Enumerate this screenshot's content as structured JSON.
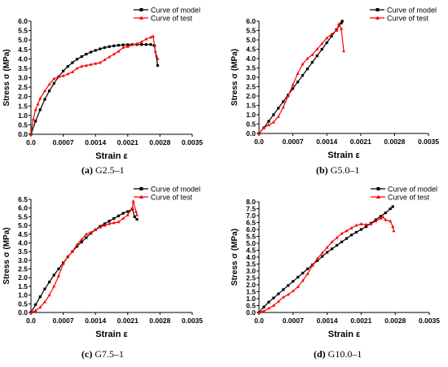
{
  "chart_data": [
    {
      "type": "line",
      "caption_letter": "(a)",
      "caption_text": "G2.5–1",
      "xlabel": "Strain ε",
      "ylabel": "Stress σ (MPa)",
      "xlim": [
        0,
        0.0035
      ],
      "ylim": [
        0,
        6.0
      ],
      "xticks": [
        "0.0",
        "0.0007",
        "0.0014",
        "0.0021",
        "0.0028",
        "0.0035"
      ],
      "xtick_values": [
        0,
        0.0007,
        0.0014,
        0.0021,
        0.0028,
        0.0035
      ],
      "yticks": [
        "0.0",
        "0.5",
        "1.0",
        "1.5",
        "2.0",
        "2.5",
        "3.0",
        "3.5",
        "4.0",
        "4.5",
        "5.0",
        "5.5",
        "6.0"
      ],
      "ytick_values": [
        0,
        0.5,
        1.0,
        1.5,
        2.0,
        2.5,
        3.0,
        3.5,
        4.0,
        4.5,
        5.0,
        5.5,
        6.0
      ],
      "legend_position": "top-right",
      "series": [
        {
          "name": "Curve of model",
          "color": "#000000",
          "marker": "square",
          "points": [
            [
              0,
              0
            ],
            [
              0.0001,
              0.7
            ],
            [
              0.0002,
              1.3
            ],
            [
              0.0003,
              1.85
            ],
            [
              0.0004,
              2.3
            ],
            [
              0.0005,
              2.7
            ],
            [
              0.0006,
              3.05
            ],
            [
              0.0007,
              3.35
            ],
            [
              0.0008,
              3.6
            ],
            [
              0.0009,
              3.8
            ],
            [
              0.001,
              3.98
            ],
            [
              0.0011,
              4.12
            ],
            [
              0.0012,
              4.25
            ],
            [
              0.0013,
              4.36
            ],
            [
              0.0014,
              4.45
            ],
            [
              0.0015,
              4.53
            ],
            [
              0.0016,
              4.6
            ],
            [
              0.0017,
              4.65
            ],
            [
              0.0018,
              4.69
            ],
            [
              0.0019,
              4.72
            ],
            [
              0.002,
              4.74
            ],
            [
              0.0021,
              4.75
            ],
            [
              0.0022,
              4.76
            ],
            [
              0.0023,
              4.76
            ],
            [
              0.0024,
              4.76
            ],
            [
              0.0025,
              4.76
            ],
            [
              0.0026,
              4.76
            ],
            [
              0.00268,
              4.7
            ],
            [
              0.00275,
              3.65
            ]
          ]
        },
        {
          "name": "Curve of test",
          "color": "#ff0000",
          "marker": "triangle",
          "points": [
            [
              0,
              0
            ],
            [
              5e-05,
              0.8
            ],
            [
              0.0001,
              1.3
            ],
            [
              0.00015,
              1.6
            ],
            [
              0.0002,
              1.9
            ],
            [
              0.0003,
              2.3
            ],
            [
              0.0004,
              2.65
            ],
            [
              0.0005,
              2.95
            ],
            [
              0.0006,
              3.05
            ],
            [
              0.0007,
              3.1
            ],
            [
              0.0008,
              3.2
            ],
            [
              0.0009,
              3.3
            ],
            [
              0.001,
              3.5
            ],
            [
              0.0011,
              3.6
            ],
            [
              0.0012,
              3.65
            ],
            [
              0.0013,
              3.7
            ],
            [
              0.0014,
              3.75
            ],
            [
              0.0015,
              3.8
            ],
            [
              0.0016,
              3.95
            ],
            [
              0.0017,
              4.1
            ],
            [
              0.0018,
              4.25
            ],
            [
              0.0019,
              4.4
            ],
            [
              0.002,
              4.6
            ],
            [
              0.0021,
              4.65
            ],
            [
              0.0022,
              4.75
            ],
            [
              0.0023,
              4.8
            ],
            [
              0.0024,
              4.9
            ],
            [
              0.0025,
              5.05
            ],
            [
              0.0026,
              5.15
            ],
            [
              0.00265,
              5.2
            ],
            [
              0.0027,
              4.4
            ],
            [
              0.00275,
              4.0
            ]
          ]
        }
      ]
    },
    {
      "type": "line",
      "caption_letter": "(b)",
      "caption_text": "G5.0–1",
      "xlabel": "Strain ε",
      "ylabel": "Stress σ (MPa)",
      "xlim": [
        0,
        0.0035
      ],
      "ylim": [
        0,
        6.0
      ],
      "xticks": [
        "0.0",
        "0.0007",
        "0.0014",
        "0.0021",
        "0.0028",
        "0.0035"
      ],
      "xtick_values": [
        0,
        0.0007,
        0.0014,
        0.0021,
        0.0028,
        0.0035
      ],
      "yticks": [
        "0.0",
        "0.5",
        "1.0",
        "1.5",
        "2.0",
        "2.5",
        "3.0",
        "3.5",
        "4.0",
        "4.5",
        "5.0",
        "5.5",
        "6.0"
      ],
      "ytick_values": [
        0,
        0.5,
        1.0,
        1.5,
        2.0,
        2.5,
        3.0,
        3.5,
        4.0,
        4.5,
        5.0,
        5.5,
        6.0
      ],
      "legend_position": "top-right",
      "series": [
        {
          "name": "Curve of model",
          "color": "#000000",
          "marker": "square",
          "points": [
            [
              0,
              0
            ],
            [
              0.0001,
              0.3
            ],
            [
              0.0002,
              0.65
            ],
            [
              0.0003,
              1.0
            ],
            [
              0.0004,
              1.35
            ],
            [
              0.0005,
              1.7
            ],
            [
              0.0006,
              2.05
            ],
            [
              0.0007,
              2.4
            ],
            [
              0.0008,
              2.75
            ],
            [
              0.0009,
              3.1
            ],
            [
              0.001,
              3.45
            ],
            [
              0.0011,
              3.8
            ],
            [
              0.0012,
              4.15
            ],
            [
              0.0013,
              4.5
            ],
            [
              0.0014,
              4.85
            ],
            [
              0.0015,
              5.2
            ],
            [
              0.0016,
              5.55
            ],
            [
              0.0017,
              5.9
            ],
            [
              0.00172,
              6.0
            ]
          ]
        },
        {
          "name": "Curve of test",
          "color": "#ff0000",
          "marker": "triangle",
          "points": [
            [
              0,
              0
            ],
            [
              0.0001,
              0.3
            ],
            [
              0.0002,
              0.45
            ],
            [
              0.0003,
              0.6
            ],
            [
              0.0004,
              0.9
            ],
            [
              0.0005,
              1.4
            ],
            [
              0.0006,
              2.0
            ],
            [
              0.0007,
              2.6
            ],
            [
              0.0008,
              3.2
            ],
            [
              0.0009,
              3.7
            ],
            [
              0.001,
              4.0
            ],
            [
              0.0011,
              4.2
            ],
            [
              0.0012,
              4.5
            ],
            [
              0.0013,
              4.8
            ],
            [
              0.0014,
              5.1
            ],
            [
              0.0015,
              5.3
            ],
            [
              0.0016,
              5.5
            ],
            [
              0.00165,
              5.85
            ],
            [
              0.0017,
              5.6
            ],
            [
              0.00175,
              4.4
            ]
          ]
        }
      ]
    },
    {
      "type": "line",
      "caption_letter": "(c)",
      "caption_text": "G7.5–1",
      "xlabel": "Strain ε",
      "ylabel": "Stress σ (MPa)",
      "xlim": [
        0,
        0.0035
      ],
      "ylim": [
        0,
        6.5
      ],
      "xticks": [
        "0.0",
        "0.0007",
        "0.0014",
        "0.0021",
        "0.0028",
        "0.0035"
      ],
      "xtick_values": [
        0,
        0.0007,
        0.0014,
        0.0021,
        0.0028,
        0.0035
      ],
      "yticks": [
        "0.0",
        "0.5",
        "1.0",
        "1.5",
        "2.0",
        "2.5",
        "3.0",
        "3.5",
        "4.0",
        "4.5",
        "5.0",
        "5.5",
        "6.0",
        "6.5"
      ],
      "ytick_values": [
        0,
        0.5,
        1.0,
        1.5,
        2.0,
        2.5,
        3.0,
        3.5,
        4.0,
        4.5,
        5.0,
        5.5,
        6.0,
        6.5
      ],
      "legend_position": "top-right",
      "series": [
        {
          "name": "Curve of model",
          "color": "#000000",
          "marker": "square",
          "points": [
            [
              0,
              0
            ],
            [
              0.0001,
              0.45
            ],
            [
              0.0002,
              0.9
            ],
            [
              0.0003,
              1.35
            ],
            [
              0.0004,
              1.75
            ],
            [
              0.0005,
              2.15
            ],
            [
              0.0006,
              2.5
            ],
            [
              0.0007,
              2.85
            ],
            [
              0.0008,
              3.2
            ],
            [
              0.0009,
              3.5
            ],
            [
              0.001,
              3.8
            ],
            [
              0.0011,
              4.05
            ],
            [
              0.0012,
              4.3
            ],
            [
              0.0013,
              4.55
            ],
            [
              0.0014,
              4.75
            ],
            [
              0.0015,
              4.95
            ],
            [
              0.0016,
              5.1
            ],
            [
              0.0017,
              5.25
            ],
            [
              0.0018,
              5.4
            ],
            [
              0.0019,
              5.55
            ],
            [
              0.002,
              5.7
            ],
            [
              0.0021,
              5.8
            ],
            [
              0.0022,
              5.95
            ],
            [
              0.00225,
              5.5
            ],
            [
              0.0023,
              5.35
            ]
          ]
        },
        {
          "name": "Curve of test",
          "color": "#ff0000",
          "marker": "triangle",
          "points": [
            [
              0,
              0
            ],
            [
              0.0001,
              0.1
            ],
            [
              0.0002,
              0.3
            ],
            [
              0.0003,
              0.6
            ],
            [
              0.0004,
              1.0
            ],
            [
              0.0005,
              1.5
            ],
            [
              0.0006,
              2.1
            ],
            [
              0.0007,
              2.8
            ],
            [
              0.0008,
              3.2
            ],
            [
              0.0009,
              3.5
            ],
            [
              0.001,
              3.9
            ],
            [
              0.0011,
              4.2
            ],
            [
              0.0012,
              4.5
            ],
            [
              0.0013,
              4.6
            ],
            [
              0.0014,
              4.75
            ],
            [
              0.0015,
              4.9
            ],
            [
              0.0016,
              5.0
            ],
            [
              0.0017,
              5.1
            ],
            [
              0.0018,
              5.15
            ],
            [
              0.0019,
              5.2
            ],
            [
              0.002,
              5.4
            ],
            [
              0.0021,
              5.6
            ],
            [
              0.0022,
              6.0
            ],
            [
              0.00222,
              6.4
            ],
            [
              0.00228,
              5.8
            ],
            [
              0.0023,
              5.6
            ]
          ]
        }
      ]
    },
    {
      "type": "line",
      "caption_letter": "(d)",
      "caption_text": "G10.0–1",
      "xlabel": "Strain ε",
      "ylabel": "Stress σ (MPa)",
      "xlim": [
        0,
        0.0035
      ],
      "ylim": [
        0,
        8.0
      ],
      "xticks": [
        "0.0",
        "0.0007",
        "0.0014",
        "0.0021",
        "0.0028",
        "0.0035"
      ],
      "xtick_values": [
        0,
        0.0007,
        0.0014,
        0.0021,
        0.0028,
        0.0035
      ],
      "yticks": [
        "0.0",
        "0.5",
        "1.0",
        "1.5",
        "2.0",
        "2.5",
        "3.0",
        "3.5",
        "4.0",
        "4.5",
        "5.0",
        "5.5",
        "6.0",
        "6.5",
        "7.0",
        "7.5",
        "8.0"
      ],
      "ytick_values": [
        0,
        0.5,
        1.0,
        1.5,
        2.0,
        2.5,
        3.0,
        3.5,
        4.0,
        4.5,
        5.0,
        5.5,
        6.0,
        6.5,
        7.0,
        7.5,
        8.0
      ],
      "legend_position": "top-right",
      "series": [
        {
          "name": "Curve of model",
          "color": "#000000",
          "marker": "square",
          "points": [
            [
              0,
              0
            ],
            [
              0.0001,
              0.4
            ],
            [
              0.0002,
              0.75
            ],
            [
              0.0003,
              1.05
            ],
            [
              0.0004,
              1.35
            ],
            [
              0.0005,
              1.65
            ],
            [
              0.0006,
              1.95
            ],
            [
              0.0007,
              2.25
            ],
            [
              0.0008,
              2.55
            ],
            [
              0.0009,
              2.85
            ],
            [
              0.001,
              3.15
            ],
            [
              0.0011,
              3.45
            ],
            [
              0.0012,
              3.75
            ],
            [
              0.0013,
              4.05
            ],
            [
              0.0014,
              4.35
            ],
            [
              0.0015,
              4.6
            ],
            [
              0.0016,
              4.85
            ],
            [
              0.0017,
              5.1
            ],
            [
              0.0018,
              5.35
            ],
            [
              0.0019,
              5.6
            ],
            [
              0.002,
              5.8
            ],
            [
              0.0021,
              6.0
            ],
            [
              0.0022,
              6.2
            ],
            [
              0.0023,
              6.45
            ],
            [
              0.0024,
              6.7
            ],
            [
              0.0025,
              6.95
            ],
            [
              0.0026,
              7.2
            ],
            [
              0.0027,
              7.5
            ],
            [
              0.00275,
              7.65
            ]
          ]
        },
        {
          "name": "Curve of test",
          "color": "#ff0000",
          "marker": "triangle",
          "points": [
            [
              0,
              0
            ],
            [
              0.0001,
              0.1
            ],
            [
              0.0002,
              0.3
            ],
            [
              0.0003,
              0.5
            ],
            [
              0.0004,
              0.8
            ],
            [
              0.0005,
              1.1
            ],
            [
              0.0006,
              1.3
            ],
            [
              0.0007,
              1.55
            ],
            [
              0.0008,
              1.85
            ],
            [
              0.0009,
              2.3
            ],
            [
              0.001,
              2.8
            ],
            [
              0.0011,
              3.4
            ],
            [
              0.0012,
              3.9
            ],
            [
              0.0013,
              4.3
            ],
            [
              0.0014,
              4.7
            ],
            [
              0.0015,
              5.1
            ],
            [
              0.0016,
              5.4
            ],
            [
              0.0017,
              5.7
            ],
            [
              0.0018,
              5.9
            ],
            [
              0.0019,
              6.1
            ],
            [
              0.002,
              6.3
            ],
            [
              0.0021,
              6.4
            ],
            [
              0.0022,
              6.35
            ],
            [
              0.0023,
              6.4
            ],
            [
              0.0024,
              6.6
            ],
            [
              0.0025,
              6.8
            ],
            [
              0.00255,
              6.9
            ],
            [
              0.0026,
              6.7
            ],
            [
              0.0027,
              6.6
            ],
            [
              0.00275,
              6.2
            ],
            [
              0.00277,
              5.9
            ]
          ]
        }
      ]
    }
  ]
}
